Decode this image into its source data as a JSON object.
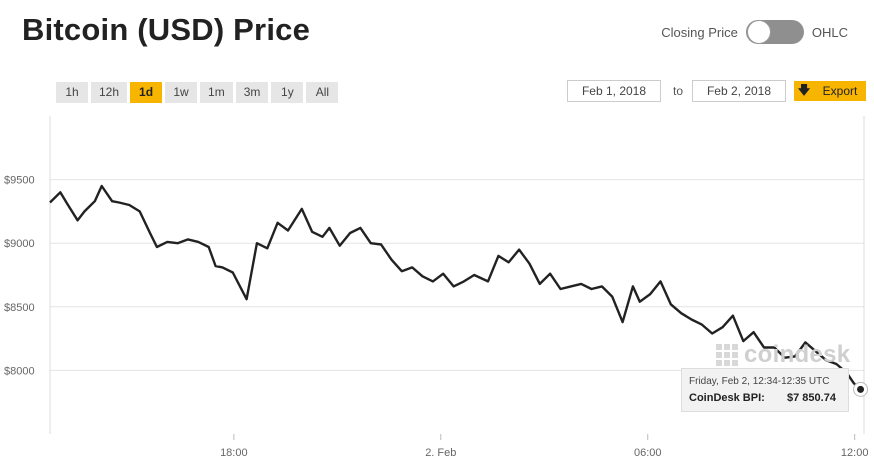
{
  "header": {
    "title": "Bitcoin (USD) Price",
    "toggle_left_label": "Closing Price",
    "toggle_right_label": "OHLC"
  },
  "ranges": [
    {
      "label": "1h",
      "active": false
    },
    {
      "label": "12h",
      "active": false
    },
    {
      "label": "1d",
      "active": true
    },
    {
      "label": "1w",
      "active": false
    },
    {
      "label": "1m",
      "active": false
    },
    {
      "label": "3m",
      "active": false
    },
    {
      "label": "1y",
      "active": false
    },
    {
      "label": "All",
      "active": false
    }
  ],
  "dates": {
    "from": "Feb 1, 2018",
    "to_label": "to",
    "to": "Feb 2, 2018",
    "export_label": "Export"
  },
  "tooltip": {
    "time": "Friday, Feb 2, 12:34-12:35 UTC",
    "label": "CoinDesk BPI:",
    "value": "$7 850.74"
  },
  "watermark": "coindesk",
  "colors": {
    "accent": "#f7b500",
    "line": "#222222",
    "grid": "#e3e3e3"
  },
  "chart_data": {
    "type": "line",
    "title": "Bitcoin (USD) Price",
    "x_unit": "hours since Feb 1, 2018 12:40 UTC",
    "x_ticks": [
      {
        "x": 5.33,
        "label": "18:00"
      },
      {
        "x": 11.33,
        "label": "2. Feb"
      },
      {
        "x": 17.33,
        "label": "06:00"
      },
      {
        "x": 23.33,
        "label": "12:00"
      }
    ],
    "y_ticks": [
      {
        "y": 8000,
        "label": "$8000"
      },
      {
        "y": 8500,
        "label": "$8500"
      },
      {
        "y": 9000,
        "label": "$9000"
      },
      {
        "y": 9500,
        "label": "$9500"
      }
    ],
    "xlim": [
      0,
      23.6
    ],
    "ylim": [
      7500,
      10000
    ],
    "grid": true,
    "series": [
      {
        "name": "CoinDesk BPI",
        "x": [
          0,
          0.3,
          0.5,
          0.8,
          1.0,
          1.3,
          1.5,
          1.8,
          2.0,
          2.3,
          2.6,
          2.9,
          3.1,
          3.4,
          3.7,
          4.0,
          4.3,
          4.6,
          4.8,
          5.0,
          5.3,
          5.7,
          6.0,
          6.3,
          6.6,
          6.9,
          7.3,
          7.6,
          7.9,
          8.1,
          8.4,
          8.7,
          9.0,
          9.3,
          9.6,
          9.9,
          10.2,
          10.5,
          10.8,
          11.1,
          11.4,
          11.7,
          12.0,
          12.3,
          12.7,
          13.0,
          13.3,
          13.6,
          13.9,
          14.2,
          14.5,
          14.8,
          15.1,
          15.4,
          15.7,
          16.0,
          16.3,
          16.6,
          16.9,
          17.1,
          17.4,
          17.7,
          18.0,
          18.3,
          18.6,
          18.9,
          19.2,
          19.5,
          19.8,
          20.1,
          20.4,
          20.7,
          21.0,
          21.3,
          21.6,
          21.9,
          22.2,
          22.5,
          22.8,
          23.1,
          23.3,
          23.5
        ],
        "y": [
          9320,
          9400,
          9310,
          9180,
          9250,
          9330,
          9450,
          9330,
          9320,
          9300,
          9250,
          9080,
          8970,
          9010,
          9000,
          9030,
          9010,
          8970,
          8820,
          8810,
          8770,
          8560,
          9000,
          8960,
          9160,
          9100,
          9270,
          9090,
          9050,
          9120,
          8980,
          9080,
          9120,
          9000,
          8990,
          8870,
          8780,
          8810,
          8740,
          8700,
          8760,
          8660,
          8700,
          8750,
          8700,
          8900,
          8850,
          8950,
          8840,
          8680,
          8760,
          8640,
          8660,
          8680,
          8640,
          8660,
          8580,
          8380,
          8660,
          8540,
          8600,
          8700,
          8520,
          8450,
          8400,
          8360,
          8290,
          8340,
          8430,
          8230,
          8300,
          8180,
          8180,
          8100,
          8110,
          8220,
          8150,
          8080,
          8050,
          7980,
          7900,
          7851
        ]
      }
    ]
  }
}
